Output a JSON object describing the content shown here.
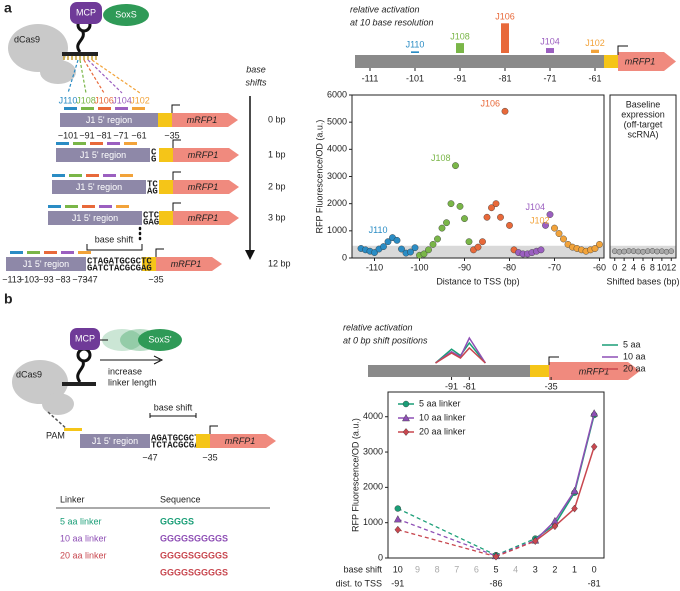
{
  "panel_labels": [
    "a",
    "b"
  ],
  "panel_a": {
    "mcp": "MCP",
    "effector": "SoxS",
    "dcas9": "dCas9",
    "site_labels": [
      "J110",
      "J108",
      "J106",
      "J104",
      "J102"
    ],
    "shift_axis_label": [
      "base",
      "shifts"
    ],
    "region": "J1 5' region",
    "reporter": "mRFP1",
    "rows": [
      {
        "shift": "0 bp"
      },
      {
        "shift": "1 bp",
        "insert": [
          "C",
          "G"
        ]
      },
      {
        "shift": "2 bp",
        "insert": [
          "TC",
          "AG"
        ]
      },
      {
        "shift": "3 bp",
        "insert": [
          "CTC",
          "GAG"
        ]
      },
      {
        "shift": "12 bp",
        "insert": [
          "CTAGATGCGCTC",
          "GATCTACGCGAG"
        ]
      }
    ],
    "row0_ticks": [
      "−101",
      "−91",
      "−81",
      "−71",
      "−61",
      "−35"
    ],
    "row12_ticks": [
      "−113",
      "−103",
      "−93",
      "−83",
      "−73",
      "−47",
      "−35"
    ],
    "base_shift_label": "base shift"
  },
  "panel_b": {
    "mcp": "MCP",
    "effector": "SoxS'",
    "linker_note": [
      "increase",
      "linker length"
    ],
    "dcas9": "dCas9",
    "pam": "PAM",
    "region": "J1 5' region",
    "reporter": "mRFP1",
    "base_shift_label": "base shift",
    "insert": [
      "AGATGCGCTC",
      "TCTACGCGAG"
    ],
    "ticks": [
      "−47",
      "−35"
    ],
    "table": {
      "header": [
        "Linker",
        "Sequence"
      ],
      "rows": [
        {
          "linker": "5 aa linker",
          "sequence": [
            "GGGGS"
          ],
          "color": "#1a9e77"
        },
        {
          "linker": "10 aa linker",
          "sequence": [
            "GGGGSGGGGS"
          ],
          "color": "#8e4fb5"
        },
        {
          "linker": "20 aa linker",
          "sequence": [
            "GGGGSGGGGS",
            "GGGGSGGGGS"
          ],
          "color": "#c8474f"
        }
      ]
    }
  },
  "chart_data": [
    {
      "type": "scatter",
      "xlabel": "Distance to TSS (bp)",
      "ylabel": "RFP Fluorescence/OD (a.u.)",
      "xlim": [
        -115,
        -59
      ],
      "ylim": [
        0,
        6000
      ],
      "xticks": [
        -110,
        -100,
        -90,
        -80,
        -70,
        -60
      ],
      "yticks": [
        0,
        1000,
        2000,
        3000,
        4000,
        5000,
        6000
      ],
      "baseline_band": [
        0,
        450
      ],
      "series": [
        {
          "name": "J110",
          "color": "#2a8cc4",
          "x": [
            -113,
            -112,
            -111,
            -110,
            -109,
            -108,
            -107,
            -106,
            -105,
            -104,
            -103,
            -102,
            -101
          ],
          "values": [
            350,
            300,
            250,
            200,
            330,
            420,
            600,
            750,
            650,
            330,
            180,
            220,
            380
          ]
        },
        {
          "name": "J108",
          "color": "#7ab648",
          "x": [
            -100,
            -99,
            -98,
            -97,
            -96,
            -95,
            -94,
            -93,
            -92,
            -91,
            -90,
            -89
          ],
          "values": [
            100,
            150,
            300,
            500,
            700,
            1100,
            1300,
            2000,
            3400,
            1900,
            1450,
            600
          ]
        },
        {
          "name": "J106",
          "color": "#e8693a",
          "x": [
            -88,
            -87,
            -86,
            -85,
            -84,
            -83,
            -82,
            -81,
            -80,
            -79
          ],
          "values": [
            300,
            400,
            600,
            1500,
            1850,
            2000,
            1500,
            5400,
            1200,
            300
          ]
        },
        {
          "name": "J104",
          "color": "#9b5fc0",
          "x": [
            -78,
            -77,
            -76,
            -75,
            -74,
            -73,
            -72,
            -71
          ],
          "values": [
            200,
            150,
            150,
            200,
            250,
            300,
            1200,
            1600
          ]
        },
        {
          "name": "J102",
          "color": "#f2a33a",
          "x": [
            -70,
            -69,
            -68,
            -67,
            -66,
            -65,
            -64,
            -63,
            -62,
            -61,
            -60
          ],
          "values": [
            1100,
            900,
            700,
            500,
            400,
            350,
            300,
            250,
            300,
            350,
            500
          ]
        }
      ]
    },
    {
      "type": "scatter",
      "title": [
        "Baseline",
        "expression",
        "(off-target",
        "scRNA)"
      ],
      "xlabel": "Shifted bases (bp)",
      "x": [
        0,
        1,
        2,
        3,
        4,
        5,
        6,
        7,
        8,
        9,
        10,
        11,
        12
      ],
      "values": [
        250,
        230,
        240,
        260,
        250,
        240,
        230,
        250,
        260,
        240,
        250,
        230,
        250
      ],
      "color": "#a9a9a9",
      "xlim": [
        -1,
        13
      ],
      "ylim": [
        0,
        6000
      ],
      "xticks": [
        0,
        2,
        4,
        6,
        8,
        10,
        12
      ],
      "baseline_band": [
        0,
        450
      ]
    },
    {
      "type": "bar",
      "title": [
        "relative activation",
        "at 10 base resolution"
      ],
      "x": [
        -101,
        -91,
        -81,
        -71,
        -61
      ],
      "values": [
        0.05,
        0.3,
        0.9,
        0.15,
        0.1
      ],
      "labels": [
        "J110",
        "J108",
        "J106",
        "J104",
        "J102"
      ],
      "colors": [
        "#2a8cc4",
        "#7ab648",
        "#e8693a",
        "#9b5fc0",
        "#f2a33a"
      ],
      "xlim": [
        -115,
        -59
      ],
      "ylim": [
        0,
        1
      ],
      "xticks": [
        -111,
        -101,
        -91,
        -81,
        -71,
        -61
      ]
    },
    {
      "type": "line",
      "title": [
        "relative activation",
        "at 0 bp shift positions"
      ],
      "xlim": [
        -120,
        -30
      ],
      "ylim": [
        0,
        1
      ],
      "xticks": [
        -91,
        -81,
        -35
      ],
      "legend": "right",
      "series": [
        {
          "name": "5 aa",
          "color": "#1a9e77",
          "x": [
            -100,
            -91,
            -86,
            -81,
            -72
          ],
          "values": [
            0,
            0.55,
            0.3,
            0.8,
            0
          ]
        },
        {
          "name": "10 aa",
          "color": "#8e4fb5",
          "x": [
            -100,
            -91,
            -86,
            -81,
            -72
          ],
          "values": [
            0,
            0.45,
            0.25,
            1,
            0
          ]
        },
        {
          "name": "20 aa",
          "color": "#c8474f",
          "x": [
            -100,
            -91,
            -86,
            -81,
            -72
          ],
          "values": [
            0,
            0.4,
            0.2,
            0.6,
            0
          ]
        }
      ]
    },
    {
      "type": "line",
      "ylabel": "RFP Fluorescence/OD (a.u.)",
      "categories": [
        10,
        9,
        8,
        7,
        6,
        5,
        4,
        3,
        2,
        1,
        0
      ],
      "category_label": "base shift",
      "second_row": {
        "label": "dist. to TSS",
        "values": [
          -91,
          null,
          null,
          null,
          null,
          -86,
          null,
          null,
          null,
          null,
          -81
        ]
      },
      "ylim": [
        0,
        4700
      ],
      "yticks": [
        0,
        1000,
        2000,
        3000,
        4000
      ],
      "legend": "upper left",
      "series": [
        {
          "name": "5 aa linker",
          "color": "#1a9e77",
          "marker": "circle",
          "values": [
            1400,
            null,
            null,
            null,
            null,
            80,
            null,
            550,
            950,
            1850,
            4050
          ]
        },
        {
          "name": "10 aa linker",
          "color": "#8e4fb5",
          "marker": "triangle",
          "values": [
            1100,
            null,
            null,
            null,
            null,
            60,
            null,
            500,
            1050,
            1900,
            4100
          ]
        },
        {
          "name": "20 aa linker",
          "color": "#c8474f",
          "marker": "diamond",
          "values": [
            800,
            null,
            null,
            null,
            null,
            40,
            null,
            480,
            900,
            1400,
            3150
          ]
        }
      ]
    }
  ]
}
